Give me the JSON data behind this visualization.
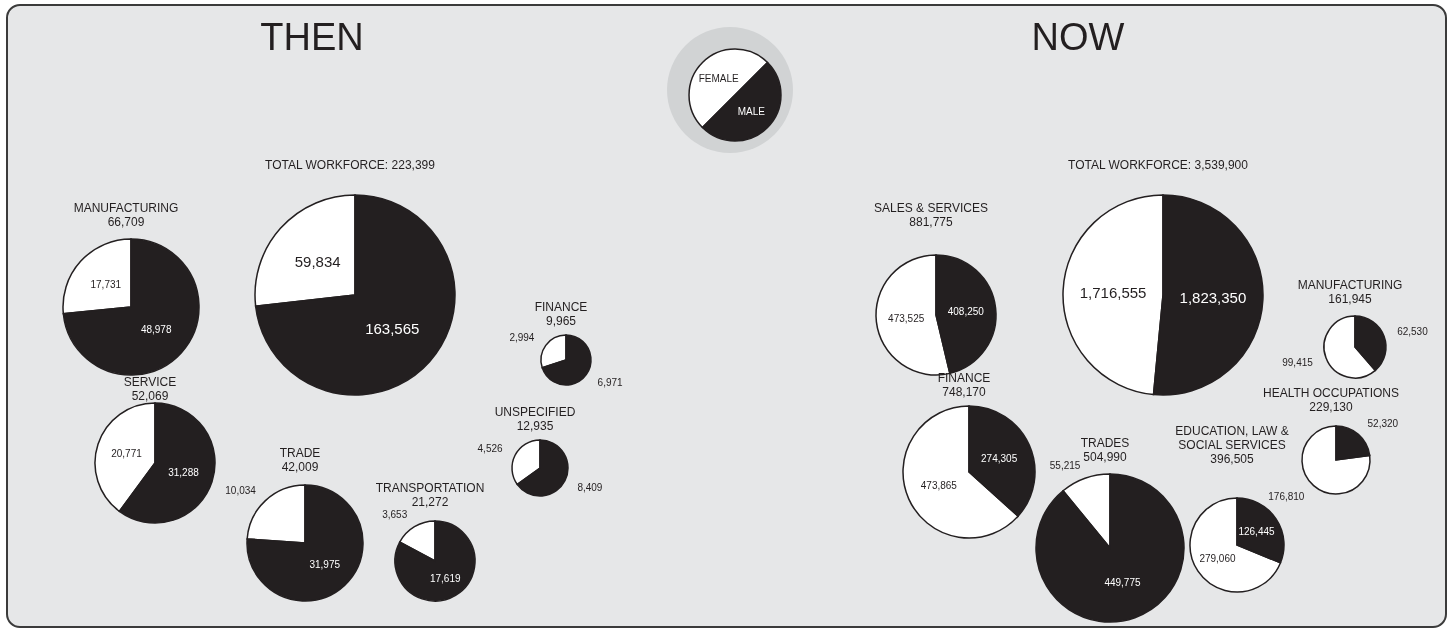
{
  "chart_data": [
    {
      "type": "other",
      "title": "THEN"
    },
    {
      "type": "pie",
      "categories": [
        "FEMALE",
        "MALE"
      ],
      "values": [
        50,
        50
      ],
      "colors": [
        "#ffffff",
        "#231f20"
      ]
    },
    {
      "type": "other",
      "title": "NOW"
    },
    {
      "type": "pie",
      "title": "TOTAL WORKFORCE: 223,399",
      "values": [
        59834,
        163565
      ],
      "value_labels": [
        "59,834",
        "163,565"
      ],
      "colors": [
        "#ffffff",
        "#231f20"
      ]
    },
    {
      "type": "pie",
      "title": "MANUFACTURING",
      "subtitle": "66,709",
      "values": [
        17731,
        48978
      ],
      "value_labels": [
        "17,731",
        "48,978"
      ],
      "colors": [
        "#ffffff",
        "#231f20"
      ]
    },
    {
      "type": "pie",
      "title": "SERVICE",
      "subtitle": "52,069",
      "values": [
        20771,
        31288
      ],
      "value_labels": [
        "20,771",
        "31,288"
      ],
      "colors": [
        "#ffffff",
        "#231f20"
      ]
    },
    {
      "type": "pie",
      "title": "TRADE",
      "subtitle": "42,009",
      "values": [
        10034,
        31975
      ],
      "value_labels": [
        "10,034",
        "31,975"
      ],
      "colors": [
        "#ffffff",
        "#231f20"
      ]
    },
    {
      "type": "pie",
      "title": "TRANSPORTATION",
      "subtitle": "21,272",
      "values": [
        3653,
        17619
      ],
      "value_labels": [
        "3,653",
        "17,619"
      ],
      "colors": [
        "#ffffff",
        "#231f20"
      ]
    },
    {
      "type": "pie",
      "title": "FINANCE",
      "subtitle": "9,965",
      "values": [
        2994,
        6971
      ],
      "value_labels": [
        "2,994",
        "6,971"
      ],
      "colors": [
        "#ffffff",
        "#231f20"
      ]
    },
    {
      "type": "pie",
      "title": "UNSPECIFIED",
      "subtitle": "12,935",
      "values": [
        4526,
        8409
      ],
      "value_labels": [
        "4,526",
        "8,409"
      ],
      "colors": [
        "#ffffff",
        "#231f20"
      ]
    },
    {
      "type": "pie",
      "title": "TOTAL WORKFORCE: 3,539,900",
      "values": [
        1716555,
        1823350
      ],
      "value_labels": [
        "1,716,555",
        "1,823,350"
      ],
      "colors": [
        "#ffffff",
        "#231f20"
      ]
    },
    {
      "type": "pie",
      "title": "SALES & SERVICES",
      "subtitle": "881,775",
      "values": [
        473525,
        408250
      ],
      "value_labels": [
        "473,525",
        "408,250"
      ],
      "colors": [
        "#ffffff",
        "#231f20"
      ]
    },
    {
      "type": "pie",
      "title": "MANUFACTURING",
      "subtitle": "161,945",
      "values": [
        99415,
        62530
      ],
      "value_labels": [
        "99,415",
        "62,530"
      ],
      "colors": [
        "#ffffff",
        "#231f20"
      ]
    },
    {
      "type": "pie",
      "title": "FINANCE",
      "subtitle": "748,170",
      "values": [
        473865,
        274305
      ],
      "value_labels": [
        "473,865",
        "274,305"
      ],
      "colors": [
        "#ffffff",
        "#231f20"
      ]
    },
    {
      "type": "pie",
      "title": "TRADES",
      "subtitle": "504,990",
      "values": [
        55215,
        449775
      ],
      "value_labels": [
        "55,215",
        "449,775"
      ],
      "colors": [
        "#ffffff",
        "#231f20"
      ]
    },
    {
      "type": "pie",
      "title": "EDUCATION, LAW & SOCIAL SERVICES",
      "subtitle": "396,505",
      "values": [
        279060,
        126445
      ],
      "value_labels": [
        "279,060",
        "126,445"
      ],
      "colors": [
        "#ffffff",
        "#231f20"
      ]
    },
    {
      "type": "pie",
      "title": "HEALTH OCCUPATIONS",
      "subtitle": "229,130",
      "values": [
        176810,
        52320
      ],
      "value_labels": [
        "176,810",
        "52,320"
      ],
      "colors": [
        "#ffffff",
        "#231f20"
      ]
    }
  ]
}
